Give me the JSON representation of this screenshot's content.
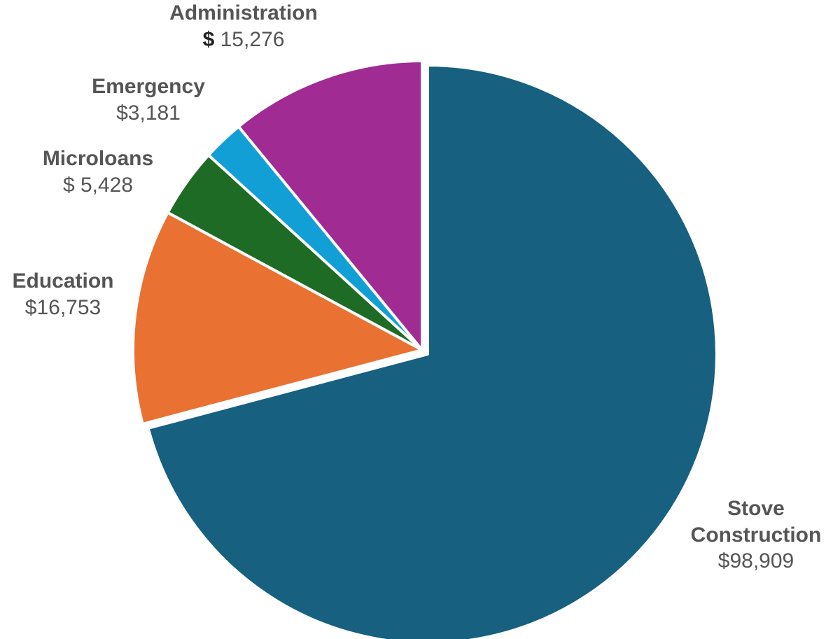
{
  "chart_data": {
    "type": "pie",
    "start_angle_deg": 0,
    "direction": "clockwise",
    "legend": "none",
    "slices": [
      {
        "category": "Stove Construction",
        "category_lines": [
          "Stove",
          "Construction"
        ],
        "value": 98909,
        "value_label": "$98,909",
        "color": "#17607F",
        "exploded": true
      },
      {
        "category": "Education",
        "category_lines": [
          "Education"
        ],
        "value": 16753,
        "value_label": "$16,753",
        "color": "#E97132",
        "exploded": false
      },
      {
        "category": "Microloans",
        "category_lines": [
          "Microloans"
        ],
        "value": 5428,
        "value_label": "$ 5,428",
        "color": "#1E6B25",
        "exploded": false
      },
      {
        "category": "Emergency",
        "category_lines": [
          "Emergency"
        ],
        "value": 3181,
        "value_label": "$3,181",
        "color": "#129FD6",
        "exploded": false
      },
      {
        "category": "Administration",
        "category_lines": [
          "Administration"
        ],
        "value": 15276,
        "value_label": "$ 15,276",
        "value_currency_bold": true,
        "color": "#A02B93",
        "exploded": false
      }
    ]
  }
}
